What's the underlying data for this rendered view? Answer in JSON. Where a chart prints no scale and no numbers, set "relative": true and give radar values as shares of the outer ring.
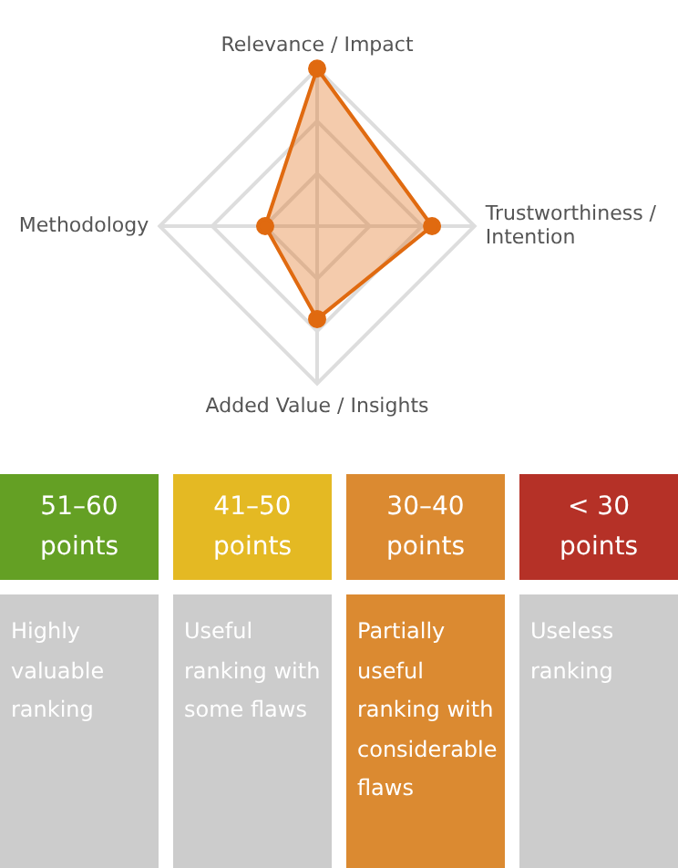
{
  "chart_data": [
    {
      "type": "radar",
      "categories": [
        "Relevance / Impact",
        "Trustworthiness / Intention",
        "Added Value / Insights",
        "Methodology"
      ],
      "relative": true,
      "grid": true,
      "marker": "circle",
      "series": [
        {
          "color": "#e06a10",
          "values": [
            1,
            0.73,
            0.59,
            0.33
          ]
        }
      ]
    },
    {
      "type": "other",
      "categories": [
        "51–60 points",
        "41–50 points",
        "30–40 points",
        "< 30 points",
        "Highly valuable ranking",
        "Useful ranking with some flaws",
        "Partially useful ranking with considerable flaws",
        "Useless ranking"
      ],
      "colors": [
        "#64a024",
        "#e4b923",
        "#db8a31",
        "#b53127",
        "#cccccc",
        "#cccccc",
        "#db8a31",
        "#cccccc"
      ]
    }
  ]
}
